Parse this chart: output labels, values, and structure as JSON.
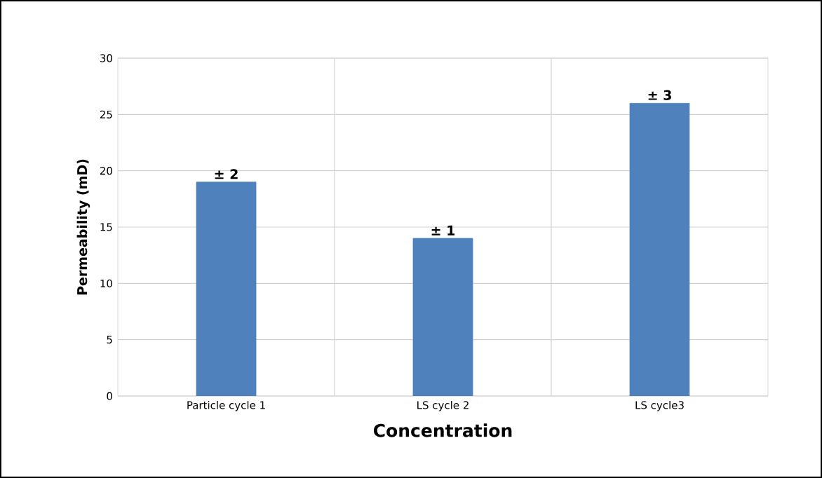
{
  "chart_data": {
    "type": "bar",
    "xlabel": "Concentration",
    "ylabel": "Permeability (mD)",
    "categories": [
      "Particle cycle 1",
      "LS cycle 2",
      "LS cycle3"
    ],
    "values": [
      19,
      14,
      26
    ],
    "color": "#4f81bd",
    "ylim": [
      0,
      30
    ],
    "yticks": [
      0,
      5,
      10,
      15,
      20,
      25,
      30
    ],
    "grid": true,
    "annotations": [
      {
        "text": "± 2",
        "x": "Particle cycle 1",
        "y": 19
      },
      {
        "text": "± 1",
        "x": "LS cycle 2",
        "y": 14
      },
      {
        "text": "± 3",
        "x": "LS cycle3",
        "y": 26
      }
    ]
  }
}
